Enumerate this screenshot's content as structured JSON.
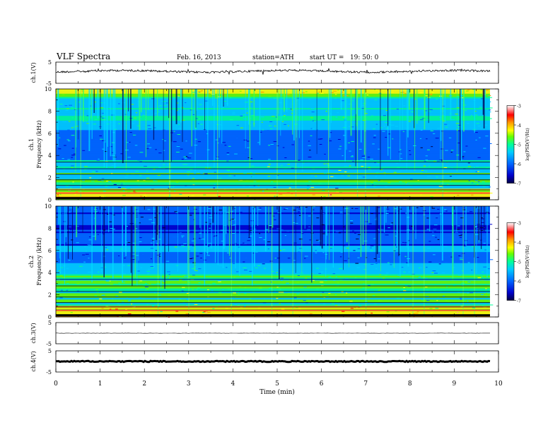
{
  "header": {
    "title": "VLF Spectra",
    "date": "Feb. 16, 2013",
    "station": "station=ATH",
    "start": "start UT =   19: 50: 0"
  },
  "chart_data": [
    {
      "type": "line",
      "name": "ch1-waveform",
      "ylabel": "ch.1(V)",
      "ylim": [
        -5,
        5
      ],
      "yticks": [
        "5",
        "-5"
      ],
      "xlim": [
        0,
        10
      ]
    },
    {
      "type": "heatmap",
      "name": "ch1-spectrogram",
      "ylabel_top": "ch.1",
      "ylabel": "Frequency (kHz)",
      "ylim": [
        0,
        10
      ],
      "yticks": [
        "10",
        "8",
        "6",
        "4",
        "2",
        "0"
      ],
      "colorbar": {
        "label": "log(PSD(V²/Hz)",
        "range": [
          -7,
          -3
        ],
        "ticks": [
          "-3",
          "-4",
          "-5",
          "-6",
          "-7"
        ]
      }
    },
    {
      "type": "heatmap",
      "name": "ch2-spectrogram",
      "ylabel_top": "ch.2",
      "ylabel": "Frequency (kHz)",
      "ylim": [
        0,
        10
      ],
      "yticks": [
        "10",
        "8",
        "6",
        "4",
        "2",
        "0"
      ],
      "colorbar": {
        "label": "log(PSD(V²/Hz)",
        "range": [
          -7,
          -3
        ],
        "ticks": [
          "-3",
          "-4",
          "-5",
          "-6",
          "-7"
        ]
      }
    },
    {
      "type": "line",
      "name": "ch3-waveform",
      "ylabel": "ch.3(V)",
      "ylim": [
        -5,
        5
      ],
      "yticks": [
        "5",
        "-5"
      ]
    },
    {
      "type": "line",
      "name": "ch4-waveform",
      "ylabel": "ch.4(V)",
      "ylim": [
        -5,
        5
      ],
      "yticks": [
        "5",
        "-5"
      ]
    }
  ],
  "x_axis": {
    "label": "Time (min)",
    "ticks": [
      "0",
      "1",
      "2",
      "3",
      "4",
      "5",
      "6",
      "7",
      "8",
      "9",
      "10"
    ],
    "range": [
      0,
      10
    ]
  },
  "colors": {
    "colormap": [
      "#000044",
      "#0000cc",
      "#0066ff",
      "#00ccff",
      "#00ff99",
      "#66ff00",
      "#ffff00",
      "#ff9900",
      "#ff0000",
      "#ff9999",
      "#ffffff"
    ]
  }
}
